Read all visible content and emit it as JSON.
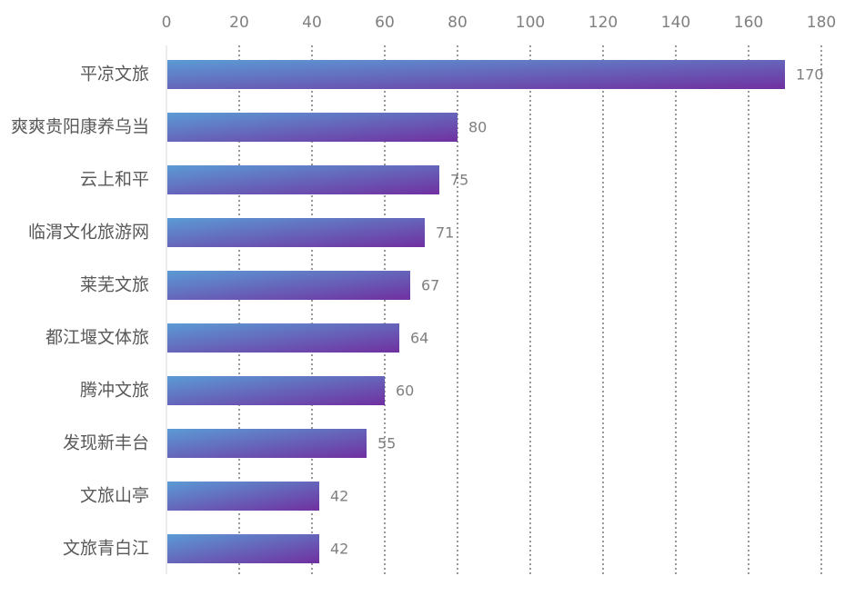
{
  "chart_data": {
    "type": "bar",
    "orientation": "horizontal",
    "categories": [
      "平凉文旅",
      "爽爽贵阳康养乌当",
      "云上和平",
      "临渭文化旅游网",
      "莱芜文旅",
      "都江堰文体旅",
      "腾冲文旅",
      "发现新丰台",
      "文旅山亭",
      "文旅青白江"
    ],
    "values": [
      170,
      80,
      75,
      71,
      67,
      64,
      60,
      55,
      42,
      42
    ],
    "xlim": [
      0,
      180
    ],
    "x_ticks": [
      0,
      20,
      40,
      60,
      80,
      100,
      120,
      140,
      160,
      180
    ],
    "x_axis_position": "top",
    "grid": true,
    "grid_style": "dotted vertical",
    "data_labels": true,
    "colors": {
      "bar_start": "#5b9bd5",
      "bar_end": "#7030a0",
      "grid": "#333333",
      "axis": "#d9d9d9",
      "tick_text": "#7f7f7f",
      "category_text": "#595959",
      "value_text": "#7f7f7f"
    }
  }
}
